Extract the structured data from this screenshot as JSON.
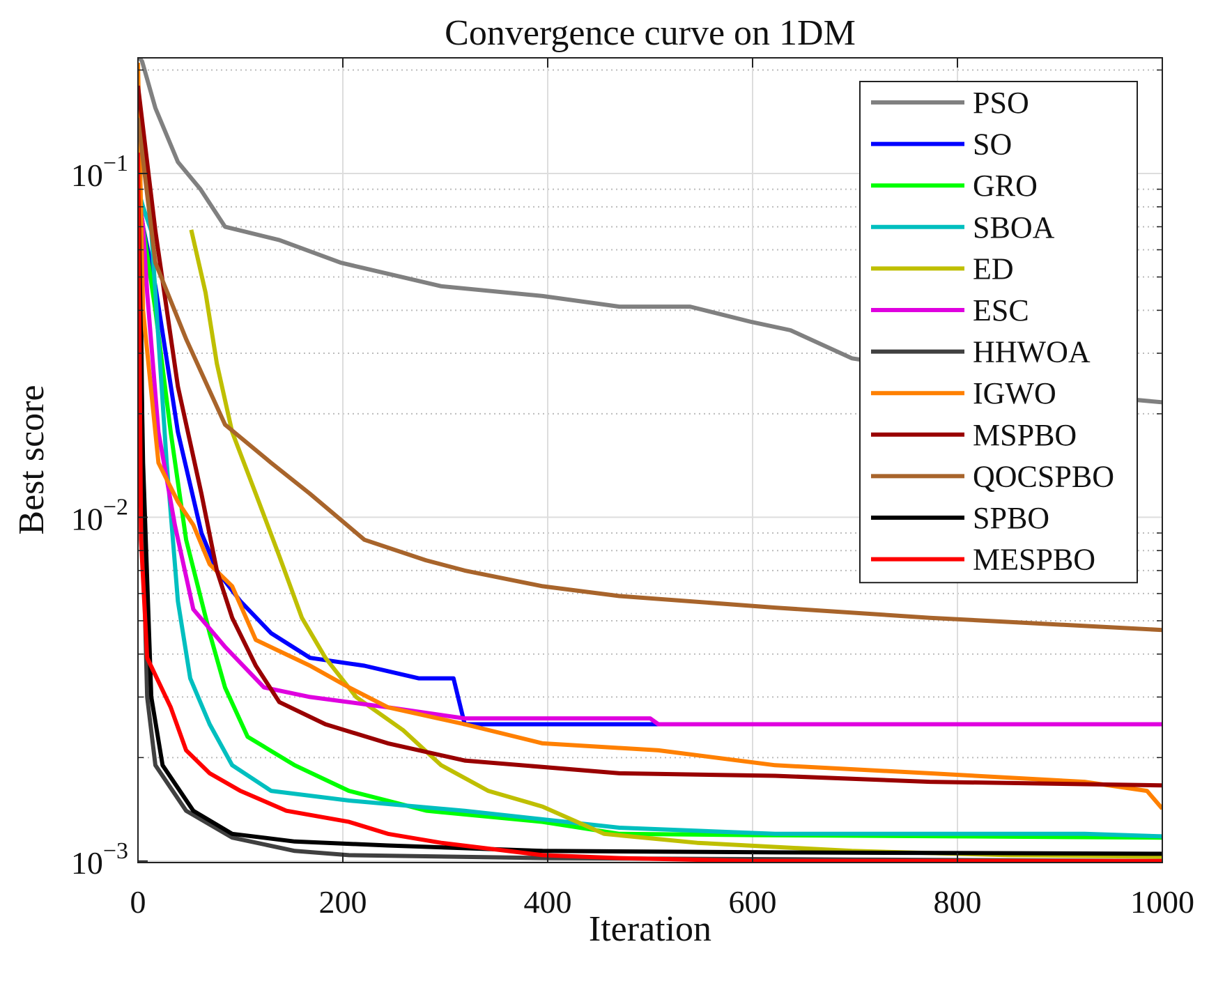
{
  "chart_data": {
    "type": "line",
    "title": "Convergence curve on 1DM",
    "xlabel": "Iteration",
    "ylabel": "Best score",
    "xlim": [
      0,
      1000
    ],
    "ylim": [
      0.00099,
      0.217
    ],
    "yscale": "log",
    "xticks": [
      0,
      200,
      400,
      600,
      800,
      1000
    ],
    "xtick_labels": [
      "0",
      "200",
      "400",
      "600",
      "800",
      "1000"
    ],
    "yticks": [
      0.001,
      0.01,
      0.1
    ],
    "ytick_labels": [
      {
        "base": "10",
        "exp": "−3"
      },
      {
        "base": "10",
        "exp": "−2"
      },
      {
        "base": "10",
        "exp": "−1"
      }
    ],
    "grid": true,
    "legend_position": "top-right",
    "series": [
      {
        "name": "PSO",
        "color": "#808080",
        "x": [
          0,
          4,
          17,
          39,
          61,
          85,
          138,
          198,
          296,
          395,
          470,
          539,
          599,
          637,
          697,
          800,
          900,
          1000
        ],
        "y": [
          0.22,
          0.212,
          0.155,
          0.108,
          0.09,
          0.07,
          0.064,
          0.055,
          0.047,
          0.044,
          0.041,
          0.041,
          0.037,
          0.035,
          0.029,
          0.026,
          0.023,
          0.0216
        ]
      },
      {
        "name": "SO",
        "color": "#0000ff",
        "x": [
          0,
          5,
          17,
          39,
          62,
          77,
          100,
          130,
          168,
          221,
          274,
          308,
          319,
          1000
        ],
        "y": [
          0.09,
          0.07,
          0.047,
          0.0177,
          0.009,
          0.007,
          0.0057,
          0.0046,
          0.0039,
          0.0037,
          0.0034,
          0.0034,
          0.0025,
          0.0025
        ]
      },
      {
        "name": "GRO",
        "color": "#00ff00",
        "x": [
          0,
          5,
          17,
          32,
          47,
          70,
          85,
          107,
          153,
          206,
          282,
          395,
          470,
          600,
          800,
          1000
        ],
        "y": [
          0.09,
          0.07,
          0.04,
          0.0177,
          0.0086,
          0.0046,
          0.0032,
          0.0023,
          0.0019,
          0.0016,
          0.0014,
          0.0013,
          0.0012,
          0.00119,
          0.00118,
          0.00117
        ]
      },
      {
        "name": "SBOA",
        "color": "#00bfbf",
        "x": [
          0,
          5,
          13,
          28,
          39,
          51,
          70,
          92,
          130,
          206,
          319,
          470,
          622,
          924,
          1000
        ],
        "y": [
          0.09,
          0.08,
          0.068,
          0.0144,
          0.0057,
          0.0034,
          0.0025,
          0.0019,
          0.0016,
          0.0015,
          0.0014,
          0.00125,
          0.0012,
          0.0012,
          0.00118
        ]
      },
      {
        "name": "ED",
        "color": "#bfbf00",
        "x": [
          52,
          66,
          77,
          92,
          115,
          138,
          160,
          183,
          213,
          259,
          296,
          342,
          395,
          455,
          546,
          697,
          850,
          1000
        ],
        "y": [
          0.0686,
          0.045,
          0.028,
          0.0177,
          0.0117,
          0.0077,
          0.0051,
          0.0039,
          0.003,
          0.0024,
          0.0019,
          0.0016,
          0.00144,
          0.0012,
          0.00113,
          0.00107,
          0.00104,
          0.00103
        ]
      },
      {
        "name": "ESC",
        "color": "#df00df",
        "x": [
          0,
          5,
          9,
          20,
          36,
          54,
          85,
          123,
          168,
          244,
          319,
          500,
          508,
          1000
        ],
        "y": [
          0.09,
          0.07,
          0.045,
          0.0177,
          0.0095,
          0.0054,
          0.0042,
          0.0032,
          0.003,
          0.0028,
          0.0026,
          0.0026,
          0.0025,
          0.0025
        ]
      },
      {
        "name": "HHWOA",
        "color": "#404040",
        "x": [
          0,
          2,
          5,
          9,
          17,
          47,
          92,
          153,
          206,
          400,
          700,
          1000
        ],
        "y": [
          0.15,
          0.126,
          0.0086,
          0.003,
          0.0019,
          0.0014,
          0.00117,
          0.00107,
          0.00104,
          0.00102,
          0.00101,
          0.001
        ]
      },
      {
        "name": "IGWO",
        "color": "#ff8000",
        "x": [
          0,
          5,
          20,
          39,
          54,
          70,
          92,
          115,
          168,
          206,
          244,
          319,
          395,
          508,
          622,
          773,
          924,
          985,
          1000
        ],
        "y": [
          0.21,
          0.04,
          0.0144,
          0.0111,
          0.0095,
          0.0073,
          0.0063,
          0.0044,
          0.0037,
          0.0032,
          0.0028,
          0.0025,
          0.0022,
          0.0021,
          0.0019,
          0.0018,
          0.0017,
          0.0016,
          0.00142
        ]
      },
      {
        "name": "MSPBO",
        "color": "#990000",
        "x": [
          0,
          17,
          39,
          62,
          77,
          92,
          115,
          138,
          183,
          244,
          319,
          470,
          622,
          773,
          1000
        ],
        "y": [
          0.18,
          0.068,
          0.024,
          0.0117,
          0.007,
          0.0051,
          0.0037,
          0.0029,
          0.0025,
          0.0022,
          0.00196,
          0.0018,
          0.00177,
          0.0017,
          0.00166
        ]
      },
      {
        "name": "QOCSPBO",
        "color": "#a8642b",
        "x": [
          0,
          17,
          47,
          85,
          130,
          168,
          221,
          281,
          319,
          395,
          470,
          622,
          773,
          1000
        ],
        "y": [
          0.145,
          0.055,
          0.033,
          0.0186,
          0.0144,
          0.0117,
          0.0086,
          0.0075,
          0.007,
          0.0063,
          0.0059,
          0.00546,
          0.0051,
          0.0047
        ]
      },
      {
        "name": "SPBO",
        "color": "#000000",
        "x": [
          0,
          5,
          13,
          24,
          54,
          92,
          153,
          244,
          395,
          622,
          1000
        ],
        "y": [
          0.1,
          0.0144,
          0.003,
          0.0019,
          0.0014,
          0.0012,
          0.00114,
          0.00111,
          0.00107,
          0.00106,
          0.00105
        ]
      },
      {
        "name": "MESPBO",
        "color": "#ff0000",
        "x": [
          0,
          3,
          9,
          32,
          47,
          70,
          100,
          145,
          206,
          244,
          296,
          395,
          470,
          600,
          1000
        ],
        "y": [
          0.115,
          0.0086,
          0.0039,
          0.0028,
          0.0021,
          0.0018,
          0.0016,
          0.0014,
          0.0013,
          0.0012,
          0.00113,
          0.00104,
          0.00102,
          0.001,
          0.001
        ]
      }
    ]
  }
}
